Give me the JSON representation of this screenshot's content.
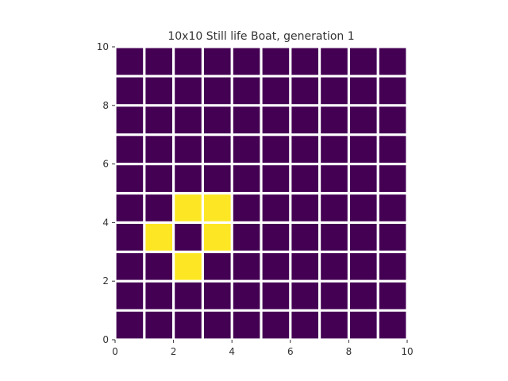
{
  "chart_data": {
    "type": "heatmap",
    "title": "10x10 Still life Boat, generation 1",
    "xlabel": "",
    "ylabel": "",
    "xlim": [
      0,
      10
    ],
    "ylim": [
      0,
      10
    ],
    "x_ticks": [
      0,
      2,
      4,
      6,
      8,
      10
    ],
    "y_ticks": [
      0,
      2,
      4,
      6,
      8,
      10
    ],
    "grid": true,
    "colors": {
      "dead": "#440154",
      "alive": "#fde725",
      "grid_line": "#ffffff",
      "text": "#333333"
    },
    "rows_top_to_bottom": [
      [
        0,
        0,
        0,
        0,
        0,
        0,
        0,
        0,
        0,
        0
      ],
      [
        0,
        0,
        0,
        0,
        0,
        0,
        0,
        0,
        0,
        0
      ],
      [
        0,
        0,
        0,
        0,
        0,
        0,
        0,
        0,
        0,
        0
      ],
      [
        0,
        0,
        0,
        0,
        0,
        0,
        0,
        0,
        0,
        0
      ],
      [
        0,
        0,
        0,
        0,
        0,
        0,
        0,
        0,
        0,
        0
      ],
      [
        0,
        0,
        1,
        1,
        0,
        0,
        0,
        0,
        0,
        0
      ],
      [
        0,
        1,
        0,
        1,
        0,
        0,
        0,
        0,
        0,
        0
      ],
      [
        0,
        0,
        1,
        0,
        0,
        0,
        0,
        0,
        0,
        0
      ],
      [
        0,
        0,
        0,
        0,
        0,
        0,
        0,
        0,
        0,
        0
      ],
      [
        0,
        0,
        0,
        0,
        0,
        0,
        0,
        0,
        0,
        0
      ]
    ]
  }
}
